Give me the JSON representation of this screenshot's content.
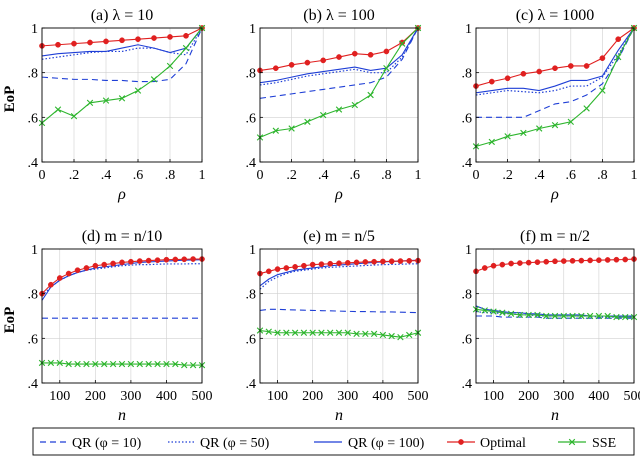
{
  "figure": {
    "legend": [
      {
        "key": "qr10",
        "label": "QR (φ = 10)",
        "color": "#1f3fd6",
        "dash": "6,4",
        "marker": "none"
      },
      {
        "key": "qr50",
        "label": "QR (φ = 50)",
        "color": "#1f3fd6",
        "dash": "1.5,2",
        "marker": "none"
      },
      {
        "key": "qr100",
        "label": "QR (φ = 100)",
        "color": "#1f3fd6",
        "dash": "",
        "marker": "none"
      },
      {
        "key": "optimal",
        "label": "Optimal",
        "color": "#e02020",
        "dash": "",
        "marker": "dot"
      },
      {
        "key": "sse",
        "label": "SSE",
        "color": "#2db52d",
        "dash": "",
        "marker": "x"
      }
    ]
  },
  "chart_data": [
    {
      "type": "line",
      "title": "(a) λ = 10",
      "xlabel": "ρ",
      "ylabel": "EoP",
      "xlim": [
        0,
        1
      ],
      "ylim": [
        0.4,
        1
      ],
      "xticks": [
        0,
        0.2,
        0.4,
        0.6,
        0.8,
        1
      ],
      "xtick_labels": [
        "0",
        ".2",
        ".4",
        ".6",
        ".8",
        "1"
      ],
      "yticks": [
        0.4,
        0.6,
        0.8,
        1
      ],
      "ytick_labels": [
        ".4",
        ".6",
        ".8",
        "1"
      ],
      "x": [
        0,
        0.1,
        0.2,
        0.3,
        0.4,
        0.5,
        0.6,
        0.7,
        0.8,
        0.9,
        1.0
      ],
      "series": [
        {
          "name": "QR (φ = 10)",
          "key": "qr10",
          "values": [
            0.78,
            0.775,
            0.77,
            0.77,
            0.765,
            0.765,
            0.76,
            0.76,
            0.77,
            0.84,
            1.0
          ]
        },
        {
          "name": "QR (φ = 50)",
          "key": "qr50",
          "values": [
            0.86,
            0.87,
            0.88,
            0.89,
            0.895,
            0.895,
            0.91,
            0.91,
            0.89,
            0.88,
            1.0
          ]
        },
        {
          "name": "QR (φ = 100)",
          "key": "qr100",
          "values": [
            0.875,
            0.885,
            0.89,
            0.895,
            0.895,
            0.91,
            0.925,
            0.91,
            0.89,
            0.91,
            1.0
          ]
        },
        {
          "name": "Optimal",
          "key": "optimal",
          "values": [
            0.92,
            0.925,
            0.93,
            0.935,
            0.94,
            0.945,
            0.95,
            0.955,
            0.96,
            0.965,
            1.0
          ]
        },
        {
          "name": "SSE",
          "key": "sse",
          "values": [
            0.575,
            0.635,
            0.605,
            0.665,
            0.675,
            0.685,
            0.72,
            0.77,
            0.83,
            0.91,
            1.0
          ]
        }
      ]
    },
    {
      "type": "line",
      "title": "(b) λ = 100",
      "xlabel": "ρ",
      "ylabel": "",
      "xlim": [
        0,
        1
      ],
      "ylim": [
        0.4,
        1
      ],
      "xticks": [
        0,
        0.2,
        0.4,
        0.6,
        0.8,
        1
      ],
      "xtick_labels": [
        "0",
        ".2",
        ".4",
        ".6",
        ".8",
        "1"
      ],
      "yticks": [
        0.4,
        0.6,
        0.8,
        1
      ],
      "ytick_labels": [
        ".4",
        ".6",
        ".8",
        "1"
      ],
      "x": [
        0,
        0.1,
        0.2,
        0.3,
        0.4,
        0.5,
        0.6,
        0.7,
        0.8,
        0.9,
        1.0
      ],
      "series": [
        {
          "name": "QR (φ = 10)",
          "key": "qr10",
          "values": [
            0.685,
            0.695,
            0.705,
            0.715,
            0.725,
            0.735,
            0.745,
            0.755,
            0.78,
            0.86,
            1.0
          ]
        },
        {
          "name": "QR (φ = 50)",
          "key": "qr50",
          "values": [
            0.745,
            0.755,
            0.77,
            0.785,
            0.795,
            0.805,
            0.815,
            0.8,
            0.8,
            0.87,
            1.0
          ]
        },
        {
          "name": "QR (φ = 100)",
          "key": "qr100",
          "values": [
            0.755,
            0.765,
            0.78,
            0.795,
            0.805,
            0.815,
            0.825,
            0.81,
            0.82,
            0.88,
            1.0
          ]
        },
        {
          "name": "Optimal",
          "key": "optimal",
          "values": [
            0.81,
            0.82,
            0.835,
            0.845,
            0.855,
            0.87,
            0.885,
            0.88,
            0.895,
            0.935,
            1.0
          ]
        },
        {
          "name": "SSE",
          "key": "sse",
          "values": [
            0.51,
            0.54,
            0.55,
            0.58,
            0.61,
            0.635,
            0.655,
            0.7,
            0.82,
            0.93,
            1.0
          ]
        }
      ]
    },
    {
      "type": "line",
      "title": "(c) λ = 1000",
      "xlabel": "ρ",
      "ylabel": "",
      "xlim": [
        0,
        1
      ],
      "ylim": [
        0.4,
        1
      ],
      "xticks": [
        0,
        0.2,
        0.4,
        0.6,
        0.8,
        1
      ],
      "xtick_labels": [
        "0",
        ".2",
        ".4",
        ".6",
        ".8",
        "1"
      ],
      "yticks": [
        0.4,
        0.6,
        0.8,
        1
      ],
      "ytick_labels": [
        ".4",
        ".6",
        ".8",
        "1"
      ],
      "x": [
        0,
        0.1,
        0.2,
        0.3,
        0.4,
        0.5,
        0.6,
        0.7,
        0.8,
        0.9,
        1.0
      ],
      "series": [
        {
          "name": "QR (φ = 10)",
          "key": "qr10",
          "values": [
            0.6,
            0.6,
            0.6,
            0.6,
            0.63,
            0.66,
            0.67,
            0.7,
            0.75,
            0.86,
            1.0
          ]
        },
        {
          "name": "QR (φ = 50)",
          "key": "qr50",
          "values": [
            0.7,
            0.71,
            0.72,
            0.715,
            0.71,
            0.72,
            0.74,
            0.74,
            0.78,
            0.88,
            1.0
          ]
        },
        {
          "name": "QR (φ = 100)",
          "key": "qr100",
          "values": [
            0.71,
            0.72,
            0.73,
            0.73,
            0.72,
            0.74,
            0.765,
            0.765,
            0.785,
            0.9,
            1.0
          ]
        },
        {
          "name": "Optimal",
          "key": "optimal",
          "values": [
            0.74,
            0.76,
            0.775,
            0.795,
            0.805,
            0.82,
            0.83,
            0.83,
            0.865,
            0.95,
            1.0
          ]
        },
        {
          "name": "SSE",
          "key": "sse",
          "values": [
            0.47,
            0.49,
            0.515,
            0.53,
            0.55,
            0.565,
            0.58,
            0.64,
            0.72,
            0.87,
            1.0
          ]
        }
      ]
    },
    {
      "type": "line",
      "title": "(d) m = n/10",
      "xlabel": "n",
      "ylabel": "EoP",
      "xlim": [
        50,
        500
      ],
      "ylim": [
        0.4,
        1
      ],
      "xticks": [
        100,
        200,
        300,
        400,
        500
      ],
      "xtick_labels": [
        "100",
        "200",
        "300",
        "400",
        "500"
      ],
      "yticks": [
        0.4,
        0.6,
        0.8,
        1
      ],
      "ytick_labels": [
        ".4",
        ".6",
        ".8",
        "1"
      ],
      "x": [
        50,
        75,
        100,
        125,
        150,
        175,
        200,
        225,
        250,
        275,
        300,
        325,
        350,
        375,
        400,
        425,
        450,
        475,
        500
      ],
      "series": [
        {
          "name": "QR (φ = 10)",
          "key": "qr10",
          "values": [
            0.69,
            0.69,
            0.69,
            0.69,
            0.69,
            0.69,
            0.69,
            0.69,
            0.69,
            0.69,
            0.69,
            0.69,
            0.69,
            0.69,
            0.69,
            0.69,
            0.69,
            0.69,
            0.69
          ]
        },
        {
          "name": "QR (φ = 50)",
          "key": "qr50",
          "values": [
            0.79,
            0.83,
            0.86,
            0.88,
            0.895,
            0.905,
            0.91,
            0.915,
            0.92,
            0.925,
            0.928,
            0.93,
            0.93,
            0.932,
            0.933,
            0.933,
            0.933,
            0.934,
            0.934
          ]
        },
        {
          "name": "QR (φ = 100)",
          "key": "qr100",
          "values": [
            0.77,
            0.83,
            0.86,
            0.88,
            0.895,
            0.905,
            0.915,
            0.92,
            0.925,
            0.93,
            0.935,
            0.94,
            0.942,
            0.944,
            0.946,
            0.948,
            0.95,
            0.951,
            0.952
          ]
        },
        {
          "name": "Optimal",
          "key": "optimal",
          "values": [
            0.8,
            0.84,
            0.87,
            0.89,
            0.905,
            0.915,
            0.925,
            0.93,
            0.935,
            0.94,
            0.943,
            0.946,
            0.948,
            0.95,
            0.952,
            0.953,
            0.954,
            0.955,
            0.955
          ]
        },
        {
          "name": "SSE",
          "key": "sse",
          "values": [
            0.49,
            0.49,
            0.49,
            0.485,
            0.485,
            0.485,
            0.485,
            0.485,
            0.485,
            0.485,
            0.485,
            0.485,
            0.485,
            0.485,
            0.485,
            0.485,
            0.48,
            0.48,
            0.48
          ]
        }
      ]
    },
    {
      "type": "line",
      "title": "(e) m = n/5",
      "xlabel": "n",
      "ylabel": "",
      "xlim": [
        50,
        500
      ],
      "ylim": [
        0.4,
        1
      ],
      "xticks": [
        100,
        200,
        300,
        400,
        500
      ],
      "xtick_labels": [
        "100",
        "200",
        "300",
        "400",
        "500"
      ],
      "yticks": [
        0.4,
        0.6,
        0.8,
        1
      ],
      "ytick_labels": [
        ".4",
        ".6",
        ".8",
        "1"
      ],
      "x": [
        50,
        75,
        100,
        125,
        150,
        175,
        200,
        225,
        250,
        275,
        300,
        325,
        350,
        375,
        400,
        425,
        450,
        475,
        500
      ],
      "series": [
        {
          "name": "QR (φ = 10)",
          "key": "qr10",
          "values": [
            0.725,
            0.73,
            0.73,
            0.728,
            0.727,
            0.726,
            0.725,
            0.724,
            0.723,
            0.722,
            0.721,
            0.72,
            0.72,
            0.719,
            0.718,
            0.718,
            0.717,
            0.716,
            0.715
          ]
        },
        {
          "name": "QR (φ = 50)",
          "key": "qr50",
          "values": [
            0.82,
            0.855,
            0.875,
            0.89,
            0.9,
            0.905,
            0.91,
            0.915,
            0.918,
            0.92,
            0.922,
            0.924,
            0.926,
            0.928,
            0.93,
            0.931,
            0.932,
            0.933,
            0.934
          ]
        },
        {
          "name": "QR (φ = 100)",
          "key": "qr100",
          "values": [
            0.835,
            0.865,
            0.885,
            0.895,
            0.905,
            0.91,
            0.915,
            0.92,
            0.925,
            0.928,
            0.931,
            0.934,
            0.937,
            0.94,
            0.942,
            0.944,
            0.946,
            0.948,
            0.95
          ]
        },
        {
          "name": "Optimal",
          "key": "optimal",
          "values": [
            0.89,
            0.9,
            0.91,
            0.915,
            0.92,
            0.925,
            0.93,
            0.932,
            0.934,
            0.936,
            0.938,
            0.94,
            0.942,
            0.943,
            0.944,
            0.945,
            0.946,
            0.947,
            0.948
          ]
        },
        {
          "name": "SSE",
          "key": "sse",
          "values": [
            0.635,
            0.63,
            0.625,
            0.625,
            0.625,
            0.625,
            0.625,
            0.625,
            0.625,
            0.625,
            0.625,
            0.62,
            0.62,
            0.62,
            0.615,
            0.61,
            0.605,
            0.615,
            0.625
          ]
        }
      ]
    },
    {
      "type": "line",
      "title": "(f) m = n/2",
      "xlabel": "n",
      "ylabel": "",
      "xlim": [
        50,
        500
      ],
      "ylim": [
        0.4,
        1
      ],
      "xticks": [
        100,
        200,
        300,
        400,
        500
      ],
      "xtick_labels": [
        "100",
        "200",
        "300",
        "400",
        "500"
      ],
      "yticks": [
        0.4,
        0.6,
        0.8,
        1
      ],
      "ytick_labels": [
        ".4",
        ".6",
        ".8",
        "1"
      ],
      "x": [
        50,
        75,
        100,
        125,
        150,
        175,
        200,
        225,
        250,
        275,
        300,
        325,
        350,
        375,
        400,
        425,
        450,
        475,
        500
      ],
      "series": [
        {
          "name": "QR (φ = 10)",
          "key": "qr10",
          "values": [
            0.7,
            0.7,
            0.7,
            0.695,
            0.695,
            0.695,
            0.695,
            0.695,
            0.69,
            0.69,
            0.69,
            0.69,
            0.69,
            0.69,
            0.69,
            0.69,
            0.69,
            0.69,
            0.69
          ]
        },
        {
          "name": "QR (φ = 50)",
          "key": "qr50",
          "values": [
            0.72,
            0.715,
            0.715,
            0.71,
            0.71,
            0.705,
            0.705,
            0.7,
            0.7,
            0.7,
            0.7,
            0.7,
            0.7,
            0.7,
            0.695,
            0.695,
            0.695,
            0.695,
            0.695
          ]
        },
        {
          "name": "QR (φ = 100)",
          "key": "qr100",
          "values": [
            0.745,
            0.73,
            0.725,
            0.72,
            0.715,
            0.715,
            0.71,
            0.71,
            0.705,
            0.705,
            0.705,
            0.705,
            0.705,
            0.7,
            0.7,
            0.7,
            0.7,
            0.7,
            0.7
          ]
        },
        {
          "name": "Optimal",
          "key": "optimal",
          "values": [
            0.9,
            0.915,
            0.925,
            0.93,
            0.935,
            0.937,
            0.939,
            0.941,
            0.943,
            0.945,
            0.946,
            0.947,
            0.948,
            0.949,
            0.95,
            0.951,
            0.952,
            0.953,
            0.955
          ]
        },
        {
          "name": "SSE",
          "key": "sse",
          "values": [
            0.73,
            0.725,
            0.72,
            0.715,
            0.71,
            0.705,
            0.705,
            0.705,
            0.7,
            0.7,
            0.7,
            0.7,
            0.7,
            0.7,
            0.7,
            0.7,
            0.695,
            0.695,
            0.695
          ]
        }
      ]
    }
  ]
}
